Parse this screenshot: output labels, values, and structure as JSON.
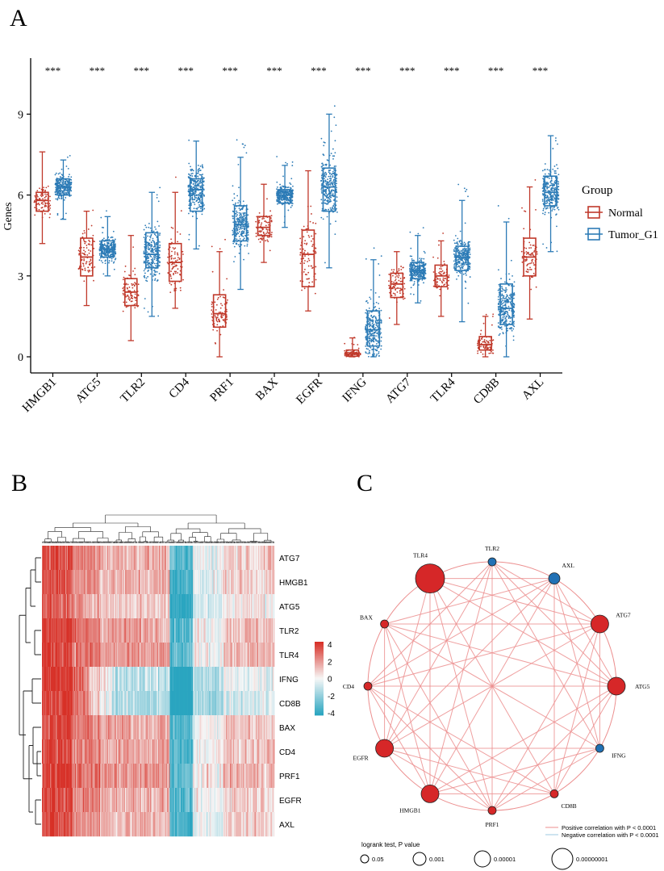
{
  "panels": {
    "a": "A",
    "b": "B",
    "c": "C"
  },
  "colors": {
    "normal": "#c0392b",
    "tumor": "#2c7bb6",
    "heat_high": "#d73027",
    "heat_mid": "#f7f7f7",
    "heat_low": "#2aa5c0",
    "net_pos": "#ec8f8f",
    "net_neg": "#9ecae1",
    "node_red": "#d62728",
    "node_blue": "#2171b5"
  },
  "chart_data": [
    {
      "type": "box",
      "panel": "A",
      "ylabel": "Genes",
      "xlabel": "",
      "ylim": [
        -0.6,
        11.2
      ],
      "yticks": [
        "0",
        "3",
        "6",
        "9"
      ],
      "significance": "***",
      "legend": {
        "title": "Group",
        "entries": [
          "Normal",
          "Tumor_G1"
        ],
        "placement": "right"
      },
      "categories": [
        "HMGB1",
        "ATG5",
        "TLR2",
        "CD4",
        "PRF1",
        "BAX",
        "EGFR",
        "IFNG",
        "ATG7",
        "TLR4",
        "CD8B",
        "AXL"
      ],
      "series": [
        {
          "name": "Normal",
          "color": "#c0392b",
          "stats": [
            [
              4.2,
              5.4,
              5.8,
              6.1,
              7.6
            ],
            [
              1.9,
              3.0,
              3.7,
              4.4,
              5.4
            ],
            [
              0.6,
              1.9,
              2.4,
              2.9,
              4.5
            ],
            [
              1.8,
              2.8,
              3.5,
              4.2,
              6.1
            ],
            [
              0.0,
              1.1,
              1.6,
              2.3,
              3.9
            ],
            [
              3.5,
              4.5,
              4.8,
              5.2,
              6.4
            ],
            [
              1.7,
              2.6,
              3.8,
              4.7,
              6.9
            ],
            [
              0.0,
              0.02,
              0.1,
              0.25,
              0.7
            ],
            [
              1.2,
              2.2,
              2.7,
              3.1,
              3.9
            ],
            [
              1.5,
              2.6,
              3.0,
              3.4,
              4.3
            ],
            [
              0.0,
              0.25,
              0.45,
              0.75,
              1.5
            ],
            [
              1.4,
              3.0,
              3.7,
              4.4,
              6.3
            ]
          ]
        },
        {
          "name": "Tumor_G1",
          "color": "#2c7bb6",
          "stats": [
            [
              5.1,
              6.0,
              6.3,
              6.6,
              7.3
            ],
            [
              3.0,
              3.7,
              4.0,
              4.3,
              5.2
            ],
            [
              1.5,
              3.3,
              3.8,
              4.6,
              6.1
            ],
            [
              4.0,
              5.4,
              6.2,
              6.6,
              8.0
            ],
            [
              2.5,
              4.3,
              4.9,
              5.6,
              7.4
            ],
            [
              4.8,
              5.7,
              6.0,
              6.2,
              7.1
            ],
            [
              3.3,
              5.4,
              6.3,
              7.0,
              9.0
            ],
            [
              0.0,
              0.4,
              1.0,
              1.7,
              3.6
            ],
            [
              2.0,
              2.9,
              3.2,
              3.5,
              4.5
            ],
            [
              1.3,
              3.2,
              3.7,
              4.1,
              5.8
            ],
            [
              0.0,
              1.2,
              1.8,
              2.7,
              5.0
            ],
            [
              3.9,
              5.6,
              6.1,
              6.7,
              8.2
            ]
          ]
        }
      ]
    },
    {
      "type": "heatmap",
      "panel": "B",
      "rows": [
        "ATG7",
        "HMGB1",
        "ATG5",
        "TLR2",
        "TLR4",
        "IFNG",
        "CD8B",
        "BAX",
        "CD4",
        "PRF1",
        "EGFR",
        "AXL"
      ],
      "legend_ticks": [
        "4",
        "2",
        "0",
        "-2",
        "-4"
      ],
      "scale": [
        -4,
        4
      ],
      "columns": 260
    },
    {
      "type": "network",
      "panel": "C",
      "nodes": [
        {
          "label": "TLR4",
          "size": 5,
          "color": "red"
        },
        {
          "label": "TLR2",
          "size": 1,
          "color": "blue"
        },
        {
          "label": "AXL",
          "size": 2,
          "color": "blue"
        },
        {
          "label": "ATG7",
          "size": 3,
          "color": "red"
        },
        {
          "label": "ATG5",
          "size": 3,
          "color": "red"
        },
        {
          "label": "IFNG",
          "size": 1,
          "color": "blue"
        },
        {
          "label": "CD8B",
          "size": 1,
          "color": "red"
        },
        {
          "label": "PRF1",
          "size": 1,
          "color": "red"
        },
        {
          "label": "HMGB1",
          "size": 3,
          "color": "red"
        },
        {
          "label": "EGFR",
          "size": 3,
          "color": "red"
        },
        {
          "label": "CD4",
          "size": 1,
          "color": "red"
        },
        {
          "label": "BAX",
          "size": 1,
          "color": "red"
        }
      ],
      "legend": {
        "positive": "Positive correlation with P < 0.0001",
        "negative": "Negative correlation with P < 0.0001",
        "size_title": "logrank test, P value",
        "size_labels": [
          "0.05",
          "0.001",
          "0.00001",
          "0.00000001"
        ]
      }
    }
  ]
}
